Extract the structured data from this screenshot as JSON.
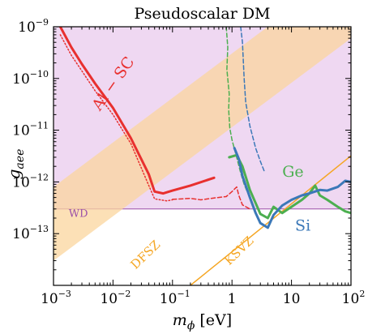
{
  "chart_data": {
    "type": "line",
    "title": "Pseudoscalar DM",
    "xlabel": "m_ϕ [eV]",
    "ylabel": "g_aee",
    "xscale": "log",
    "yscale": "log",
    "xlim": [
      0.001,
      100
    ],
    "ylim": [
      1e-14,
      1e-09
    ],
    "xticks": [
      {
        "base": "10",
        "exp": "−3"
      },
      {
        "base": "10",
        "exp": "−2"
      },
      {
        "base": "10",
        "exp": "−1"
      },
      {
        "base": "1",
        "exp": ""
      },
      {
        "base": "10",
        "exp": ""
      },
      {
        "base": "10",
        "exp": "2"
      }
    ],
    "yticks": [
      {
        "base": "10",
        "exp": "−9"
      },
      {
        "base": "10",
        "exp": "−10"
      },
      {
        "base": "10",
        "exp": "−11"
      },
      {
        "base": "10",
        "exp": "−12"
      },
      {
        "base": "10",
        "exp": "−13"
      }
    ],
    "regions": [
      {
        "label": "WD",
        "kind": "excluded-above",
        "y": 3e-13,
        "color": "#9b4fa8",
        "fill": "#efd8f2"
      },
      {
        "label": "DFSZ",
        "kind": "band",
        "color": "#f5a623",
        "fill": "#fbd59e",
        "lower": [
          [
            0.001,
            3e-14
          ],
          [
            100,
            6e-10
          ]
        ],
        "upper": [
          [
            0.001,
            8e-13
          ],
          [
            100,
            1.6e-08
          ]
        ]
      },
      {
        "label": "KSVZ",
        "kind": "line",
        "color": "#f5a623",
        "points": [
          [
            0.2,
            1e-14
          ],
          [
            100,
            3.2e-12
          ]
        ]
      }
    ],
    "series": [
      {
        "name": "Al − SC",
        "color": "#e8302f",
        "style": "solid",
        "width": 3,
        "points": [
          [
            0.0013,
            1e-09
          ],
          [
            0.002,
            4e-10
          ],
          [
            0.003,
            1.9e-10
          ],
          [
            0.005,
            8e-11
          ],
          [
            0.01,
            2.7e-11
          ],
          [
            0.02,
            7e-12
          ],
          [
            0.04,
            1.4e-12
          ],
          [
            0.05,
            6.5e-13
          ],
          [
            0.07,
            6e-13
          ],
          [
            0.1,
            6.8e-13
          ],
          [
            0.2,
            8.5e-13
          ],
          [
            0.5,
            1.2e-12
          ]
        ]
      },
      {
        "color": "#e8302f",
        "style": "dotted",
        "width": 1.5,
        "points": [
          [
            0.0013,
            7e-10
          ],
          [
            0.002,
            2.8e-10
          ],
          [
            0.003,
            1.4e-10
          ],
          [
            0.005,
            5.8e-11
          ],
          [
            0.01,
            2e-11
          ],
          [
            0.02,
            5.5e-12
          ],
          [
            0.04,
            8.5e-13
          ],
          [
            0.05,
            4.7e-13
          ],
          [
            0.08,
            4.3e-13
          ],
          [
            0.1,
            4.5e-13
          ]
        ]
      },
      {
        "color": "#e8302f",
        "style": "dashed",
        "width": 1.5,
        "points": [
          [
            0.1,
            4.6e-13
          ],
          [
            0.2,
            4.8e-13
          ],
          [
            0.3,
            4.5e-13
          ],
          [
            0.5,
            4.9e-13
          ],
          [
            0.8,
            5.2e-13
          ],
          [
            1.0,
            6.5e-13
          ],
          [
            1.2,
            8e-13
          ],
          [
            1.3,
            5.5e-13
          ],
          [
            1.5,
            3.6e-13
          ],
          [
            2.0,
            3e-13
          ]
        ]
      },
      {
        "name": "Ge",
        "color": "#4caf50",
        "style": "dashed",
        "width": 1.5,
        "points": [
          [
            0.8,
            1e-09
          ],
          [
            0.85,
            4e-10
          ],
          [
            0.82,
            1.5e-10
          ],
          [
            0.9,
            5e-11
          ],
          [
            0.88,
            2.5e-11
          ],
          [
            0.92,
            1.1e-11
          ],
          [
            1.0,
            6.5e-12
          ],
          [
            1.2,
            3e-12
          ],
          [
            1.4,
            1.5e-12
          ],
          [
            1.6,
            9e-13
          ],
          [
            1.8,
            6.5e-13
          ]
        ]
      },
      {
        "name": "Ge",
        "color": "#4caf50",
        "style": "solid",
        "width": 3,
        "points": [
          [
            0.9,
            3e-12
          ],
          [
            1.2,
            3.3e-12
          ],
          [
            1.5,
            2e-12
          ],
          [
            2.0,
            7e-13
          ],
          [
            3.0,
            2.4e-13
          ],
          [
            4.0,
            2e-13
          ],
          [
            5.0,
            3.3e-13
          ],
          [
            7.0,
            2.5e-13
          ],
          [
            10.0,
            3.3e-13
          ],
          [
            15.0,
            4.5e-13
          ],
          [
            20.0,
            6e-13
          ],
          [
            25.0,
            8.5e-13
          ],
          [
            30.0,
            5.5e-13
          ],
          [
            40.0,
            4.5e-13
          ],
          [
            60.0,
            3.3e-13
          ],
          [
            80.0,
            2.7e-13
          ],
          [
            100.0,
            2.5e-13
          ]
        ]
      },
      {
        "name": "Si",
        "color": "#3b78b8",
        "style": "dashed",
        "width": 1.5,
        "points": [
          [
            1.4,
            1e-09
          ],
          [
            1.5,
            5e-10
          ],
          [
            1.6,
            1e-10
          ],
          [
            1.7,
            3.5e-11
          ],
          [
            2.0,
            1.2e-11
          ],
          [
            2.5,
            4.5e-12
          ],
          [
            3.0,
            2.5e-12
          ],
          [
            3.5,
            1.6e-12
          ]
        ]
      },
      {
        "name": "Si",
        "color": "#3b78b8",
        "style": "solid",
        "width": 3,
        "points": [
          [
            1.1,
            4.5e-12
          ],
          [
            1.3,
            2.8e-12
          ],
          [
            1.5,
            1.3e-12
          ],
          [
            2.0,
            5e-13
          ],
          [
            2.5,
            2.5e-13
          ],
          [
            3.0,
            1.6e-13
          ],
          [
            4.0,
            1.3e-13
          ],
          [
            5.0,
            2.3e-13
          ],
          [
            7.0,
            3.5e-13
          ],
          [
            10.0,
            4.5e-13
          ],
          [
            15.0,
            5.5e-13
          ],
          [
            20.0,
            6e-13
          ],
          [
            30.0,
            7e-13
          ],
          [
            40.0,
            6.8e-13
          ],
          [
            60.0,
            8e-13
          ],
          [
            80.0,
            1.05e-12
          ],
          [
            100.0,
            1e-12
          ]
        ]
      }
    ],
    "labels": [
      {
        "text": "Al − SC",
        "color": "#e8302f",
        "x": 0.006,
        "y": 2.3e-11,
        "angle": -55,
        "size": 19
      },
      {
        "text": "Ge",
        "color": "#4caf50",
        "x": 7.0,
        "y": 1.25e-12,
        "angle": 0,
        "size": 19
      },
      {
        "text": "Si",
        "color": "#3b78b8",
        "x": 11.5,
        "y": 1.15e-13,
        "angle": 0,
        "size": 19
      },
      {
        "text": "WD",
        "color": "#9b4fa8",
        "x": 0.0018,
        "y": 2.1e-13,
        "angle": 0,
        "size": 13
      },
      {
        "text": "DFSZ",
        "color": "#f5a623",
        "x": 0.024,
        "y": 2e-14,
        "angle": -44,
        "size": 15
      },
      {
        "text": "KSVZ",
        "color": "#f5a623",
        "x": 0.9,
        "y": 2.4e-14,
        "angle": -44,
        "size": 15
      }
    ]
  }
}
